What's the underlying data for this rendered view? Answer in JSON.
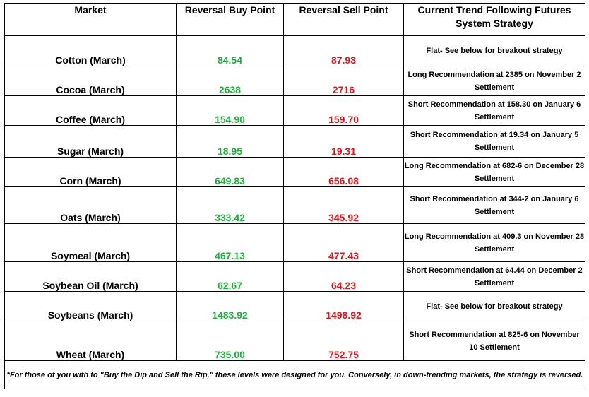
{
  "headers": {
    "market": "Market",
    "buy": "Reversal Buy Point",
    "sell": "Reversal Sell Point",
    "strategy": "Current Trend Following Futures System Strategy"
  },
  "rows": [
    {
      "market": "Cotton (March)",
      "buy": "84.54",
      "sell": "87.93",
      "strategy": "Flat- See below for breakout strategy"
    },
    {
      "market": "Cocoa (March)",
      "buy": "2638",
      "sell": "2716",
      "strategy": "Long Recommendation at 2385 on November 2 Settlement"
    },
    {
      "market": "Coffee (March)",
      "buy": "154.90",
      "sell": "159.70",
      "strategy": "Short Recommendation at 158.30 on January 6 Settlement"
    },
    {
      "market": "Sugar (March)",
      "buy": "18.95",
      "sell": "19.31",
      "strategy": "Short Recommendation at 19.34 on January 5 Settlement"
    },
    {
      "market": "Corn (March)",
      "buy": "649.83",
      "sell": "656.08",
      "strategy": "Long Recommendation at 682-6 on December 28 Settlement"
    },
    {
      "market": "Oats (March)",
      "buy": "333.42",
      "sell": "345.92",
      "strategy": "Short Recommendation at 344-2 on January 6 Settlement"
    },
    {
      "market": "Soymeal (March)",
      "buy": "467.13",
      "sell": "477.43",
      "strategy": "Long Recommendation at 409.3 on November 28 Settlement"
    },
    {
      "market": "Soybean Oil (March)",
      "buy": "62.67",
      "sell": "64.23",
      "strategy": "Short Recommendation at 64.44 on December 2 Settlement"
    },
    {
      "market": "Soybeans (March)",
      "buy": "1483.92",
      "sell": "1498.92",
      "strategy": "Flat- See below for breakout strategy"
    },
    {
      "market": "Wheat (March)",
      "buy": "735.00",
      "sell": "752.75",
      "strategy": "Short Recommendation at 825-6 on November 10 Settlement"
    }
  ],
  "footnote": "*For those of you with to \"Buy the Dip and Sell the Rip,\" these levels were designed for you. Conversely, in down-trending markets, the strategy is reversed.",
  "colors": {
    "buy": "#1db33b",
    "sell": "#e8141a"
  }
}
